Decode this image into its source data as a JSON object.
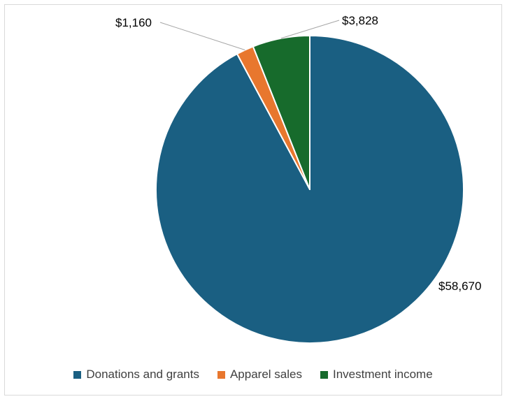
{
  "chart_data": {
    "type": "pie",
    "title": "",
    "categories": [
      "Donations and grants",
      "Apparel sales",
      "Investment income"
    ],
    "values": [
      58670,
      1160,
      3828
    ],
    "data_labels": [
      "$58,670",
      "$1,160",
      "$3,828"
    ],
    "colors": [
      "#1a5f82",
      "#e8772e",
      "#176b2c"
    ],
    "legend": {
      "position": "bottom",
      "entries": [
        "Donations and grants",
        "Apparel sales",
        "Investment income"
      ]
    }
  }
}
